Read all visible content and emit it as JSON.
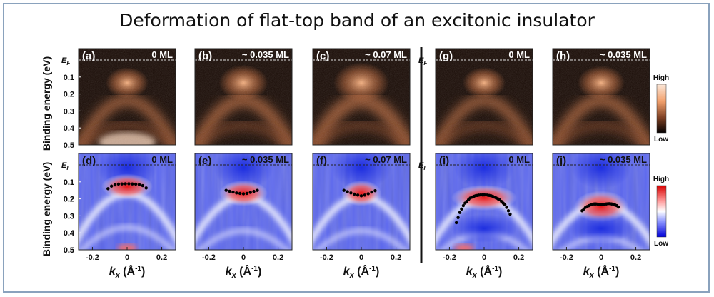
{
  "title": "Deformation of flat-top band of an excitonic insulator",
  "ylabel": "Binding energy (eV)",
  "ef_label": "E",
  "ef_sub": "F",
  "yticks": [
    "0.1",
    "0.2",
    "0.3",
    "0.4",
    "0.5"
  ],
  "xticks": [
    "-0.2",
    "0",
    "0.2"
  ],
  "xlabel": {
    "k": "k",
    "sub": "x",
    "unit": " (Å",
    "exp": "-1",
    "close": ")"
  },
  "colorbar_top": {
    "high": "High",
    "low": "Low"
  },
  "colorbar_bottom": {
    "high": "High",
    "low": "Low"
  },
  "colors": {
    "arpes_dark": "#1a0c06",
    "arpes_bright": "#f2a06c",
    "curv_blue": "#1e2fe0",
    "curv_red": "#ee2020",
    "frame": "#8aa2bd"
  },
  "top_panels": [
    {
      "tag": "(a)",
      "coverage": "0 ML"
    },
    {
      "tag": "(b)",
      "coverage": "~ 0.035 ML"
    },
    {
      "tag": "(c)",
      "coverage": "~ 0.07 ML"
    },
    {
      "tag": "(g)",
      "coverage": "0 ML"
    },
    {
      "tag": "(h)",
      "coverage": "~ 0.035 ML"
    }
  ],
  "bottom_panels": [
    {
      "tag": "(d)",
      "coverage": "0 ML",
      "dispersion": [
        [
          -0.11,
          0.14
        ],
        [
          -0.09,
          0.125
        ],
        [
          -0.07,
          0.118
        ],
        [
          -0.05,
          0.113
        ],
        [
          -0.03,
          0.112
        ],
        [
          -0.01,
          0.111
        ],
        [
          0.01,
          0.111
        ],
        [
          0.03,
          0.112
        ],
        [
          0.05,
          0.113
        ],
        [
          0.07,
          0.116
        ],
        [
          0.09,
          0.122
        ],
        [
          0.11,
          0.136
        ]
      ]
    },
    {
      "tag": "(e)",
      "coverage": "~ 0.035 ML",
      "dispersion": [
        [
          -0.1,
          0.15
        ],
        [
          -0.08,
          0.155
        ],
        [
          -0.06,
          0.16
        ],
        [
          -0.04,
          0.165
        ],
        [
          -0.02,
          0.168
        ],
        [
          0,
          0.17
        ],
        [
          0.02,
          0.168
        ],
        [
          0.04,
          0.162
        ],
        [
          0.06,
          0.156
        ],
        [
          0.08,
          0.15
        ]
      ]
    },
    {
      "tag": "(f)",
      "coverage": "~ 0.07 ML",
      "dispersion": [
        [
          -0.1,
          0.15
        ],
        [
          -0.08,
          0.158
        ],
        [
          -0.06,
          0.165
        ],
        [
          -0.04,
          0.172
        ],
        [
          -0.02,
          0.178
        ],
        [
          0,
          0.182
        ],
        [
          0.02,
          0.178
        ],
        [
          0.04,
          0.17
        ],
        [
          0.06,
          0.16
        ],
        [
          0.08,
          0.152
        ]
      ]
    },
    {
      "tag": "(i)",
      "coverage": "0 ML",
      "dispersion": [
        [
          -0.16,
          0.34
        ],
        [
          -0.15,
          0.31
        ],
        [
          -0.14,
          0.28
        ],
        [
          -0.13,
          0.26
        ],
        [
          -0.12,
          0.24
        ],
        [
          -0.11,
          0.225
        ],
        [
          -0.1,
          0.215
        ],
        [
          -0.09,
          0.205
        ],
        [
          -0.08,
          0.195
        ],
        [
          -0.07,
          0.19
        ],
        [
          -0.06,
          0.185
        ],
        [
          -0.05,
          0.182
        ],
        [
          -0.04,
          0.18
        ],
        [
          -0.03,
          0.178
        ],
        [
          -0.02,
          0.177
        ],
        [
          -0.01,
          0.177
        ],
        [
          0,
          0.177
        ],
        [
          0.01,
          0.177
        ],
        [
          0.02,
          0.178
        ],
        [
          0.03,
          0.18
        ],
        [
          0.04,
          0.182
        ],
        [
          0.05,
          0.185
        ],
        [
          0.06,
          0.19
        ],
        [
          0.07,
          0.195
        ],
        [
          0.08,
          0.2
        ],
        [
          0.09,
          0.205
        ],
        [
          0.1,
          0.215
        ],
        [
          0.11,
          0.225
        ],
        [
          0.12,
          0.235
        ],
        [
          0.13,
          0.25
        ],
        [
          0.14,
          0.27
        ],
        [
          0.15,
          0.29
        ]
      ]
    },
    {
      "tag": "(j)",
      "coverage": "~ 0.035 ML",
      "dispersion": [
        [
          -0.11,
          0.27
        ],
        [
          -0.1,
          0.26
        ],
        [
          -0.09,
          0.25
        ],
        [
          -0.08,
          0.245
        ],
        [
          -0.07,
          0.24
        ],
        [
          -0.06,
          0.235
        ],
        [
          -0.05,
          0.232
        ],
        [
          -0.04,
          0.23
        ],
        [
          -0.03,
          0.23
        ],
        [
          -0.02,
          0.231
        ],
        [
          -0.01,
          0.232
        ],
        [
          0,
          0.233
        ],
        [
          0.01,
          0.233
        ],
        [
          0.02,
          0.232
        ],
        [
          0.03,
          0.23
        ],
        [
          0.04,
          0.228
        ],
        [
          0.05,
          0.228
        ],
        [
          0.06,
          0.23
        ],
        [
          0.07,
          0.232
        ],
        [
          0.08,
          0.236
        ],
        [
          0.09,
          0.24
        ],
        [
          0.1,
          0.248
        ]
      ]
    }
  ]
}
